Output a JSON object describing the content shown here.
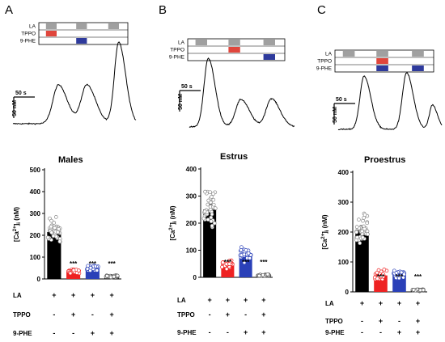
{
  "colors": {
    "la": "#a0a0a0",
    "tppo": "#e0463c",
    "phe": "#2e3a9c",
    "control_bar": "#000000",
    "tppo_bar": "#ee2222",
    "phe_bar": "#2a40b8",
    "combo_bar": "#ffffff"
  },
  "panels": [
    {
      "letter": "A",
      "protocol_labels": [
        "LA",
        "TPPO",
        "9-PHE"
      ],
      "scale_time": "50 s",
      "scale_conc": "50 nM"
    },
    {
      "letter": "B",
      "protocol_labels": [
        "LA",
        "TPPO",
        "9-PHE"
      ],
      "scale_time": "50 s",
      "scale_conc": "50 nM"
    },
    {
      "letter": "C",
      "protocol_labels": [
        "LA",
        "TPPO",
        "9-PHE"
      ],
      "scale_time": "50 s",
      "scale_conc": "50 nM"
    }
  ],
  "chart_data": [
    {
      "type": "bar",
      "title": "Males",
      "ylabel": "[Ca2+]i (nM)",
      "ylim": [
        0,
        500
      ],
      "yticks": [
        0,
        100,
        200,
        300,
        400,
        500
      ],
      "categories": [
        "LA",
        "LA+TPPO",
        "LA+9-PHE",
        "LA+TPPO+9-PHE"
      ],
      "values": [
        215,
        35,
        50,
        12
      ],
      "significance": [
        "",
        "***",
        "***",
        "***"
      ],
      "condition_rows": [
        {
          "label": "LA",
          "marks": [
            "+",
            "+",
            "+",
            "+"
          ]
        },
        {
          "label": "TPPO",
          "marks": [
            "-",
            "+",
            "-",
            "+"
          ]
        },
        {
          "label": "9-PHE",
          "marks": [
            "-",
            "-",
            "+",
            "+"
          ]
        }
      ]
    },
    {
      "type": "bar",
      "title": "Estrus",
      "ylabel": "[Ca2+]i (nM)",
      "ylim": [
        0,
        400
      ],
      "yticks": [
        0,
        100,
        200,
        300,
        400
      ],
      "categories": [
        "LA",
        "LA+TPPO",
        "LA+9-PHE",
        "LA+TPPO+9-PHE"
      ],
      "values": [
        250,
        48,
        85,
        8
      ],
      "significance": [
        "",
        "***",
        "***",
        "***"
      ],
      "condition_rows": [
        {
          "label": "LA",
          "marks": [
            "+",
            "+",
            "+",
            "+"
          ]
        },
        {
          "label": "TPPO",
          "marks": [
            "-",
            "+",
            "-",
            "+"
          ]
        },
        {
          "label": "9-PHE",
          "marks": [
            "-",
            "-",
            "+",
            "+"
          ]
        }
      ]
    },
    {
      "type": "bar",
      "title": "Proestrus",
      "ylabel": "[Ca2+]i (nM)",
      "ylim": [
        0,
        400
      ],
      "yticks": [
        0,
        100,
        200,
        300,
        400
      ],
      "categories": [
        "LA",
        "LA+TPPO",
        "LA+9-PHE",
        "LA+TPPO+9-PHE"
      ],
      "values": [
        205,
        55,
        60,
        6
      ],
      "significance": [
        "",
        "***",
        "***",
        "***"
      ],
      "condition_rows": [
        {
          "label": "LA",
          "marks": [
            "+",
            "+",
            "+",
            "+"
          ]
        },
        {
          "label": "TPPO",
          "marks": [
            "-",
            "+",
            "-",
            "+"
          ]
        },
        {
          "label": "9-PHE",
          "marks": [
            "-",
            "-",
            "+",
            "+"
          ]
        }
      ]
    }
  ]
}
